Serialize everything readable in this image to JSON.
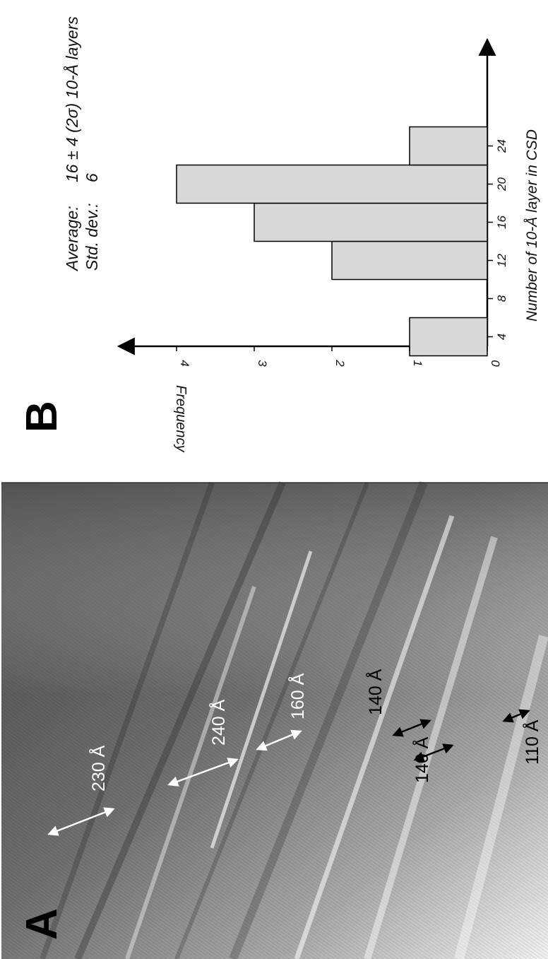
{
  "panel_a": {
    "label": "A",
    "measurements": [
      {
        "text": "230 Å",
        "color": "#ffffff"
      },
      {
        "text": "240 Å",
        "color": "#ffffff"
      },
      {
        "text": "160 Å",
        "color": "#ffffff"
      },
      {
        "text": "140 Å",
        "color": "#000000"
      },
      {
        "text": "140 Å",
        "color": "#000000"
      },
      {
        "text": "110 Å",
        "color": "#000000"
      }
    ]
  },
  "panel_b": {
    "label": "B",
    "stats": {
      "average_label": "Average:",
      "average_value": "16 ± 4 (2σ) 10-Å layers",
      "std_label": "Std. dev.:",
      "std_value": "6"
    }
  },
  "chart_data": {
    "type": "bar",
    "xlabel": "Number of 10-Å layer in CSD",
    "ylabel": "Frequency",
    "x_ticks": [
      "4",
      "8",
      "12",
      "16",
      "20",
      "24"
    ],
    "y_ticks": [
      "0",
      "1",
      "2",
      "3",
      "4"
    ],
    "bins": [
      {
        "x0": 2,
        "x1": 6,
        "value": 1
      },
      {
        "x0": 10,
        "x1": 14,
        "value": 2
      },
      {
        "x0": 14,
        "x1": 18,
        "value": 3
      },
      {
        "x0": 18,
        "x1": 22,
        "value": 4
      },
      {
        "x0": 22,
        "x1": 26,
        "value": 1
      }
    ],
    "xlim": [
      2,
      28
    ],
    "ylim": [
      0,
      4.5
    ],
    "bar_color": "#d8d8d8",
    "grid": false
  }
}
